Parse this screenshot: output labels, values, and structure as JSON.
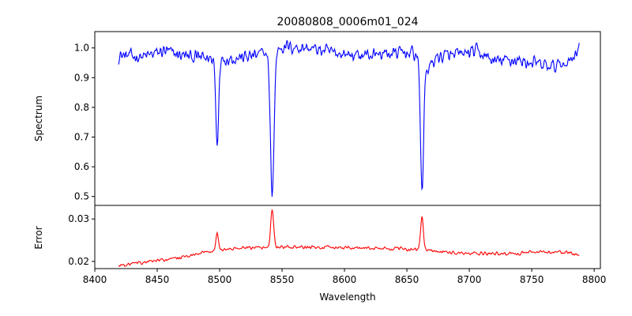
{
  "chart_data": [
    {
      "type": "line",
      "title": "20080808_0006m01_024",
      "xlabel": "",
      "ylabel": "Spectrum",
      "xlim": [
        8400,
        8805
      ],
      "ylim": [
        0.47,
        1.055
      ],
      "xticks": [],
      "yticks": [
        0.5,
        0.6,
        0.7,
        0.8,
        0.9,
        1.0
      ],
      "ytick_labels": [
        "0.5",
        "0.6",
        "0.7",
        "0.8",
        "0.9",
        "1.0"
      ],
      "series": [
        {
          "name": "spectrum",
          "color": "#0000ff",
          "x_range": [
            8419,
            8788
          ],
          "continuum": [
            [
              8419,
              0.975
            ],
            [
              8440,
              0.97
            ],
            [
              8455,
              0.99
            ],
            [
              8470,
              0.975
            ],
            [
              8490,
              0.965
            ],
            [
              8510,
              0.965
            ],
            [
              8530,
              0.975
            ],
            [
              8550,
              1.005
            ],
            [
              8570,
              1.0
            ],
            [
              8590,
              0.985
            ],
            [
              8610,
              0.975
            ],
            [
              8630,
              0.98
            ],
            [
              8650,
              0.985
            ],
            [
              8670,
              0.97
            ],
            [
              8690,
              0.975
            ],
            [
              8705,
              0.99
            ],
            [
              8720,
              0.955
            ],
            [
              8735,
              0.96
            ],
            [
              8750,
              0.95
            ],
            [
              8765,
              0.935
            ],
            [
              8780,
              0.955
            ],
            [
              8788,
              1.005
            ]
          ],
          "absorption_lines": [
            {
              "center": 8498.0,
              "depth": 0.29,
              "width": 1.1
            },
            {
              "center": 8542.1,
              "depth": 0.48,
              "width": 1.5
            },
            {
              "center": 8662.1,
              "depth": 0.44,
              "width": 1.3
            },
            {
              "center": 8667.0,
              "depth": 0.04,
              "width": 3.0
            }
          ],
          "noise_amplitude": 0.02
        }
      ]
    },
    {
      "type": "line",
      "title": "",
      "xlabel": "Wavelength",
      "ylabel": "Error",
      "xlim": [
        8400,
        8805
      ],
      "ylim": [
        0.0183,
        0.0332
      ],
      "xticks": [
        8400,
        8450,
        8500,
        8550,
        8600,
        8650,
        8700,
        8750,
        8800
      ],
      "xtick_labels": [
        "8400",
        "8450",
        "8500",
        "8550",
        "8600",
        "8650",
        "8700",
        "8750",
        "8800"
      ],
      "yticks": [
        0.02,
        0.03
      ],
      "ytick_labels": [
        "0.02",
        "0.03"
      ],
      "series": [
        {
          "name": "error",
          "color": "#ff0000",
          "x_range": [
            8419,
            8788
          ],
          "baseline": [
            [
              8419,
              0.019
            ],
            [
              8440,
              0.0198
            ],
            [
              8460,
              0.0205
            ],
            [
              8480,
              0.0215
            ],
            [
              8495,
              0.0225
            ],
            [
              8510,
              0.023
            ],
            [
              8530,
              0.0232
            ],
            [
              8550,
              0.0233
            ],
            [
              8580,
              0.0233
            ],
            [
              8610,
              0.0232
            ],
            [
              8640,
              0.023
            ],
            [
              8660,
              0.0228
            ],
            [
              8680,
              0.0222
            ],
            [
              8700,
              0.0218
            ],
            [
              8730,
              0.0218
            ],
            [
              8760,
              0.0222
            ],
            [
              8780,
              0.0221
            ],
            [
              8788,
              0.0214
            ]
          ],
          "emission_peaks": [
            {
              "center": 8498.0,
              "height": 0.0042,
              "width": 1.0
            },
            {
              "center": 8542.1,
              "height": 0.009,
              "width": 1.2
            },
            {
              "center": 8662.1,
              "height": 0.0078,
              "width": 1.1
            }
          ],
          "noise_amplitude": 0.00035
        }
      ]
    }
  ]
}
